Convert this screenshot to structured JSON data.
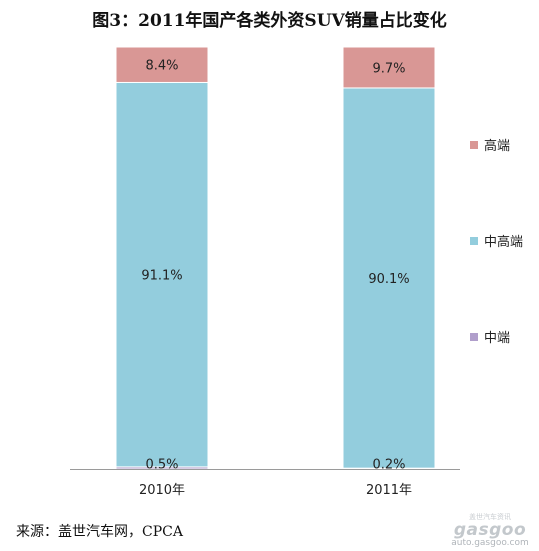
{
  "chart_data": {
    "type": "bar",
    "stacked": true,
    "title": "图3：2011年国产各类外资SUV销量占比变化",
    "categories": [
      "2010年",
      "2011年"
    ],
    "series": [
      {
        "name": "中端",
        "color": "#b09ecb",
        "values": [
          0.5,
          0.2
        ],
        "labels": [
          "0.5%",
          "0.2%"
        ]
      },
      {
        "name": "中高端",
        "color": "#93cddd",
        "values": [
          91.1,
          90.1
        ],
        "labels": [
          "91.1%",
          "90.1%"
        ]
      },
      {
        "name": "高端",
        "color": "#d99795",
        "values": [
          8.4,
          9.7
        ],
        "labels": [
          "8.4%",
          "9.7%"
        ]
      }
    ],
    "ylim": [
      0,
      100
    ],
    "legend_position": "right",
    "grid": false
  },
  "footer": {
    "source": "来源：盖世汽车网，CPCA"
  },
  "watermark": {
    "small_text": "盖世汽车资讯",
    "logo": "gasgoo",
    "url": "auto.gasgoo.com"
  }
}
